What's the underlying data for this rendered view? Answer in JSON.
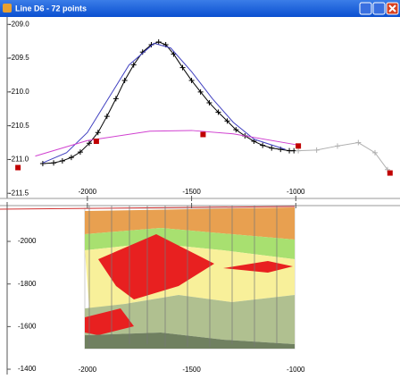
{
  "window": {
    "title": "Line D6 - 72 points"
  },
  "chart_data": {
    "type": "line",
    "xlim": [
      -2385,
      -500
    ],
    "ylim": [
      -211.55,
      -208.93
    ],
    "xticks": [
      -2000,
      -1500,
      -1000
    ],
    "yticks": [
      {
        "value": -209,
        "label": "-209.0"
      },
      -209.5,
      {
        "value": -210,
        "label": "-210.0"
      },
      -210.5,
      {
        "value": -211,
        "label": "-211.0"
      },
      -211.5
    ],
    "series": [
      {
        "color": "#000000",
        "marker": "cross",
        "x": [
          -2214,
          -2162,
          -2120,
          -2077,
          -2034,
          -1991,
          -1949,
          -1906,
          -1863,
          -1821,
          -1778,
          -1735,
          -1693,
          -1658,
          -1624,
          -1586,
          -1543,
          -1500,
          -1457,
          -1415,
          -1372,
          -1329,
          -1287,
          -1244,
          -1201,
          -1159,
          -1116,
          -1073,
          -1031,
          -1009
        ],
        "values": [
          -211.06,
          -211.05,
          -211.02,
          -210.97,
          -210.89,
          -210.76,
          -210.6,
          -210.36,
          -210.1,
          -209.83,
          -209.6,
          -209.41,
          -209.3,
          -209.26,
          -209.3,
          -209.44,
          -209.64,
          -209.83,
          -210.0,
          -210.16,
          -210.3,
          -210.43,
          -210.56,
          -210.65,
          -210.73,
          -210.79,
          -210.83,
          -210.85,
          -210.87,
          -210.87
        ]
      },
      {
        "color": "#4040c0",
        "marker": "none",
        "x": [
          -2214,
          -2100,
          -2000,
          -1900,
          -1800,
          -1680,
          -1600,
          -1500,
          -1400,
          -1300,
          -1200,
          -1050
        ],
        "values": [
          -211.05,
          -210.9,
          -210.6,
          -210.1,
          -209.6,
          -209.28,
          -209.35,
          -209.7,
          -210.1,
          -210.45,
          -210.7,
          -210.85
        ]
      },
      {
        "color": "#d040d0",
        "marker": "none",
        "x": [
          -2250,
          -2000,
          -1700,
          -1500,
          -1300,
          -1000
        ],
        "values": [
          -210.95,
          -210.72,
          -210.58,
          -210.57,
          -210.62,
          -210.78
        ]
      },
      {
        "color": "#b0b0b0",
        "marker": "cross",
        "x": [
          -988,
          -900,
          -800,
          -700,
          -620,
          -560
        ],
        "values": [
          -210.87,
          -210.86,
          -210.8,
          -210.75,
          -210.9,
          -211.15
        ]
      },
      {
        "color": "#c00000",
        "marker": "square",
        "x": [
          -2333,
          -1957,
          -1445,
          -988,
          -548
        ],
        "values": [
          -211.12,
          -210.73,
          -210.63,
          -210.8,
          -211.2
        ]
      }
    ]
  },
  "section": {
    "ylim": [
      -2189,
      -1375
    ],
    "yticks": [
      -2000,
      -1800,
      -1600,
      -1400
    ],
    "xticks": [
      -2000,
      -1500,
      -1000
    ]
  }
}
